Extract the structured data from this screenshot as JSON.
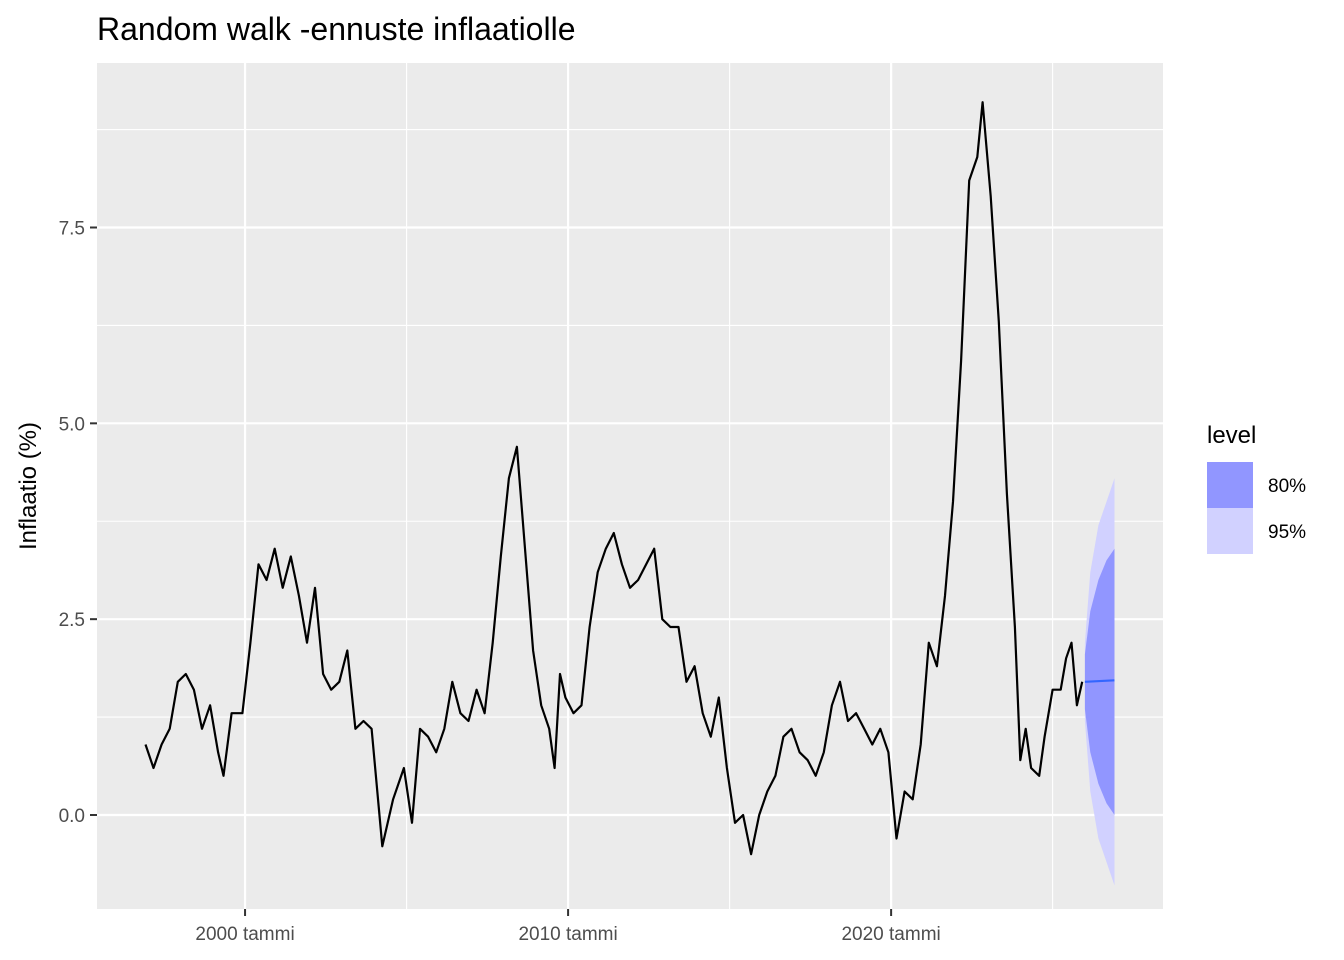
{
  "chart_data": {
    "type": "line",
    "title": "Random walk -ennuste inflaatiolle",
    "xlabel": "",
    "ylabel": "Inflaatio (%)",
    "x_range": [
      "1995-06",
      "2028-06"
    ],
    "ylim": [
      -1.2,
      9.6
    ],
    "x_ticks": [
      {
        "date": "2000-01",
        "label": "2000 tammi"
      },
      {
        "date": "2010-01",
        "label": "2010 tammi"
      },
      {
        "date": "2020-01",
        "label": "2020 tammi"
      }
    ],
    "x_minor_ticks": [
      "1995-01",
      "2005-01",
      "2015-01",
      "2025-01"
    ],
    "y_ticks": [
      {
        "value": 0.0,
        "label": "0.0"
      },
      {
        "value": 2.5,
        "label": "2.5"
      },
      {
        "value": 5.0,
        "label": "5.0"
      },
      {
        "value": 7.5,
        "label": "7.5"
      }
    ],
    "y_minor_ticks": [
      -1.25,
      1.25,
      3.75,
      6.25,
      8.75
    ],
    "grid": true,
    "background": "#ebebeb",
    "line_color": "#000000",
    "series": [
      {
        "values": [
          [
            "1996-12",
            0.9
          ],
          [
            "1997-03",
            0.6
          ],
          [
            "1997-06",
            0.9
          ],
          [
            "1997-09",
            1.1
          ],
          [
            "1997-12",
            1.7
          ],
          [
            "1998-03",
            1.8
          ],
          [
            "1998-06",
            1.6
          ],
          [
            "1998-09",
            1.1
          ],
          [
            "1998-12",
            1.4
          ],
          [
            "1999-03",
            0.8
          ],
          [
            "1999-05",
            0.5
          ],
          [
            "1999-08",
            1.3
          ],
          [
            "1999-12",
            1.3
          ],
          [
            "2000-03",
            2.2
          ],
          [
            "2000-06",
            3.2
          ],
          [
            "2000-09",
            3.0
          ],
          [
            "2000-12",
            3.4
          ],
          [
            "2001-03",
            2.9
          ],
          [
            "2001-06",
            3.3
          ],
          [
            "2001-09",
            2.8
          ],
          [
            "2001-12",
            2.2
          ],
          [
            "2002-03",
            2.9
          ],
          [
            "2002-06",
            1.8
          ],
          [
            "2002-09",
            1.6
          ],
          [
            "2002-12",
            1.7
          ],
          [
            "2003-03",
            2.1
          ],
          [
            "2003-06",
            1.1
          ],
          [
            "2003-09",
            1.2
          ],
          [
            "2003-12",
            1.1
          ],
          [
            "2004-04",
            -0.4
          ],
          [
            "2004-08",
            0.2
          ],
          [
            "2004-12",
            0.6
          ],
          [
            "2005-03",
            -0.1
          ],
          [
            "2005-06",
            1.1
          ],
          [
            "2005-09",
            1.0
          ],
          [
            "2005-12",
            0.8
          ],
          [
            "2006-03",
            1.1
          ],
          [
            "2006-06",
            1.7
          ],
          [
            "2006-09",
            1.3
          ],
          [
            "2006-12",
            1.2
          ],
          [
            "2007-03",
            1.6
          ],
          [
            "2007-06",
            1.3
          ],
          [
            "2007-09",
            2.2
          ],
          [
            "2007-12",
            3.3
          ],
          [
            "2008-03",
            4.3
          ],
          [
            "2008-06",
            4.7
          ],
          [
            "2008-09",
            3.4
          ],
          [
            "2008-12",
            2.1
          ],
          [
            "2009-03",
            1.4
          ],
          [
            "2009-06",
            1.1
          ],
          [
            "2009-08",
            0.6
          ],
          [
            "2009-10",
            1.8
          ],
          [
            "2009-12",
            1.5
          ],
          [
            "2010-03",
            1.3
          ],
          [
            "2010-06",
            1.4
          ],
          [
            "2010-09",
            2.4
          ],
          [
            "2010-12",
            3.1
          ],
          [
            "2011-03",
            3.4
          ],
          [
            "2011-06",
            3.6
          ],
          [
            "2011-09",
            3.2
          ],
          [
            "2011-12",
            2.9
          ],
          [
            "2012-03",
            3.0
          ],
          [
            "2012-06",
            3.2
          ],
          [
            "2012-09",
            3.4
          ],
          [
            "2012-12",
            2.5
          ],
          [
            "2013-03",
            2.4
          ],
          [
            "2013-06",
            2.4
          ],
          [
            "2013-09",
            1.7
          ],
          [
            "2013-12",
            1.9
          ],
          [
            "2014-03",
            1.3
          ],
          [
            "2014-06",
            1.0
          ],
          [
            "2014-09",
            1.5
          ],
          [
            "2014-12",
            0.6
          ],
          [
            "2015-03",
            -0.1
          ],
          [
            "2015-06",
            0.0
          ],
          [
            "2015-09",
            -0.5
          ],
          [
            "2015-12",
            0.0
          ],
          [
            "2016-03",
            0.3
          ],
          [
            "2016-06",
            0.5
          ],
          [
            "2016-09",
            1.0
          ],
          [
            "2016-12",
            1.1
          ],
          [
            "2017-03",
            0.8
          ],
          [
            "2017-06",
            0.7
          ],
          [
            "2017-09",
            0.5
          ],
          [
            "2017-12",
            0.8
          ],
          [
            "2018-03",
            1.4
          ],
          [
            "2018-06",
            1.7
          ],
          [
            "2018-09",
            1.2
          ],
          [
            "2018-12",
            1.3
          ],
          [
            "2019-03",
            1.1
          ],
          [
            "2019-06",
            0.9
          ],
          [
            "2019-09",
            1.1
          ],
          [
            "2019-12",
            0.8
          ],
          [
            "2020-03",
            -0.3
          ],
          [
            "2020-06",
            0.3
          ],
          [
            "2020-09",
            0.2
          ],
          [
            "2020-12",
            0.9
          ],
          [
            "2021-03",
            2.2
          ],
          [
            "2021-06",
            1.9
          ],
          [
            "2021-09",
            2.8
          ],
          [
            "2021-12",
            4.0
          ],
          [
            "2022-03",
            5.8
          ],
          [
            "2022-06",
            8.1
          ],
          [
            "2022-09",
            8.4
          ],
          [
            "2022-11",
            9.1
          ],
          [
            "2023-02",
            7.9
          ],
          [
            "2023-05",
            6.3
          ],
          [
            "2023-08",
            4.1
          ],
          [
            "2023-11",
            2.4
          ],
          [
            "2024-01",
            0.7
          ],
          [
            "2024-03",
            1.1
          ],
          [
            "2024-05",
            0.6
          ],
          [
            "2024-08",
            0.5
          ],
          [
            "2024-10",
            1.0
          ],
          [
            "2025-01",
            1.6
          ],
          [
            "2025-04",
            1.6
          ],
          [
            "2025-06",
            2.0
          ],
          [
            "2025-08",
            2.2
          ],
          [
            "2025-10",
            1.4
          ],
          [
            "2025-12",
            1.7
          ]
        ]
      }
    ],
    "forecast": {
      "mean_color": "#3366ff",
      "mean": [
        [
          "2026-01",
          1.7
        ],
        [
          "2026-12",
          1.72
        ]
      ],
      "bands": [
        {
          "level": "95%",
          "color": "#d1d1ff",
          "lower": [
            [
              "2026-01",
              1.2
            ],
            [
              "2026-03",
              0.3
            ],
            [
              "2026-06",
              -0.3
            ],
            [
              "2026-09",
              -0.6
            ],
            [
              "2026-12",
              -0.9
            ]
          ],
          "upper": [
            [
              "2026-01",
              2.2
            ],
            [
              "2026-03",
              3.1
            ],
            [
              "2026-06",
              3.7
            ],
            [
              "2026-09",
              4.0
            ],
            [
              "2026-12",
              4.3
            ]
          ]
        },
        {
          "level": "80%",
          "color": "#9196ff",
          "lower": [
            [
              "2026-01",
              1.35
            ],
            [
              "2026-03",
              0.8
            ],
            [
              "2026-06",
              0.4
            ],
            [
              "2026-09",
              0.15
            ],
            [
              "2026-12",
              0.0
            ]
          ],
          "upper": [
            [
              "2026-01",
              2.05
            ],
            [
              "2026-03",
              2.6
            ],
            [
              "2026-06",
              3.0
            ],
            [
              "2026-09",
              3.25
            ],
            [
              "2026-12",
              3.4
            ]
          ]
        }
      ]
    },
    "legend": {
      "title": "level",
      "placement": "right",
      "entries": [
        {
          "label": "80%",
          "color": "#9196ff"
        },
        {
          "label": "95%",
          "color": "#d1d1ff"
        }
      ]
    }
  }
}
